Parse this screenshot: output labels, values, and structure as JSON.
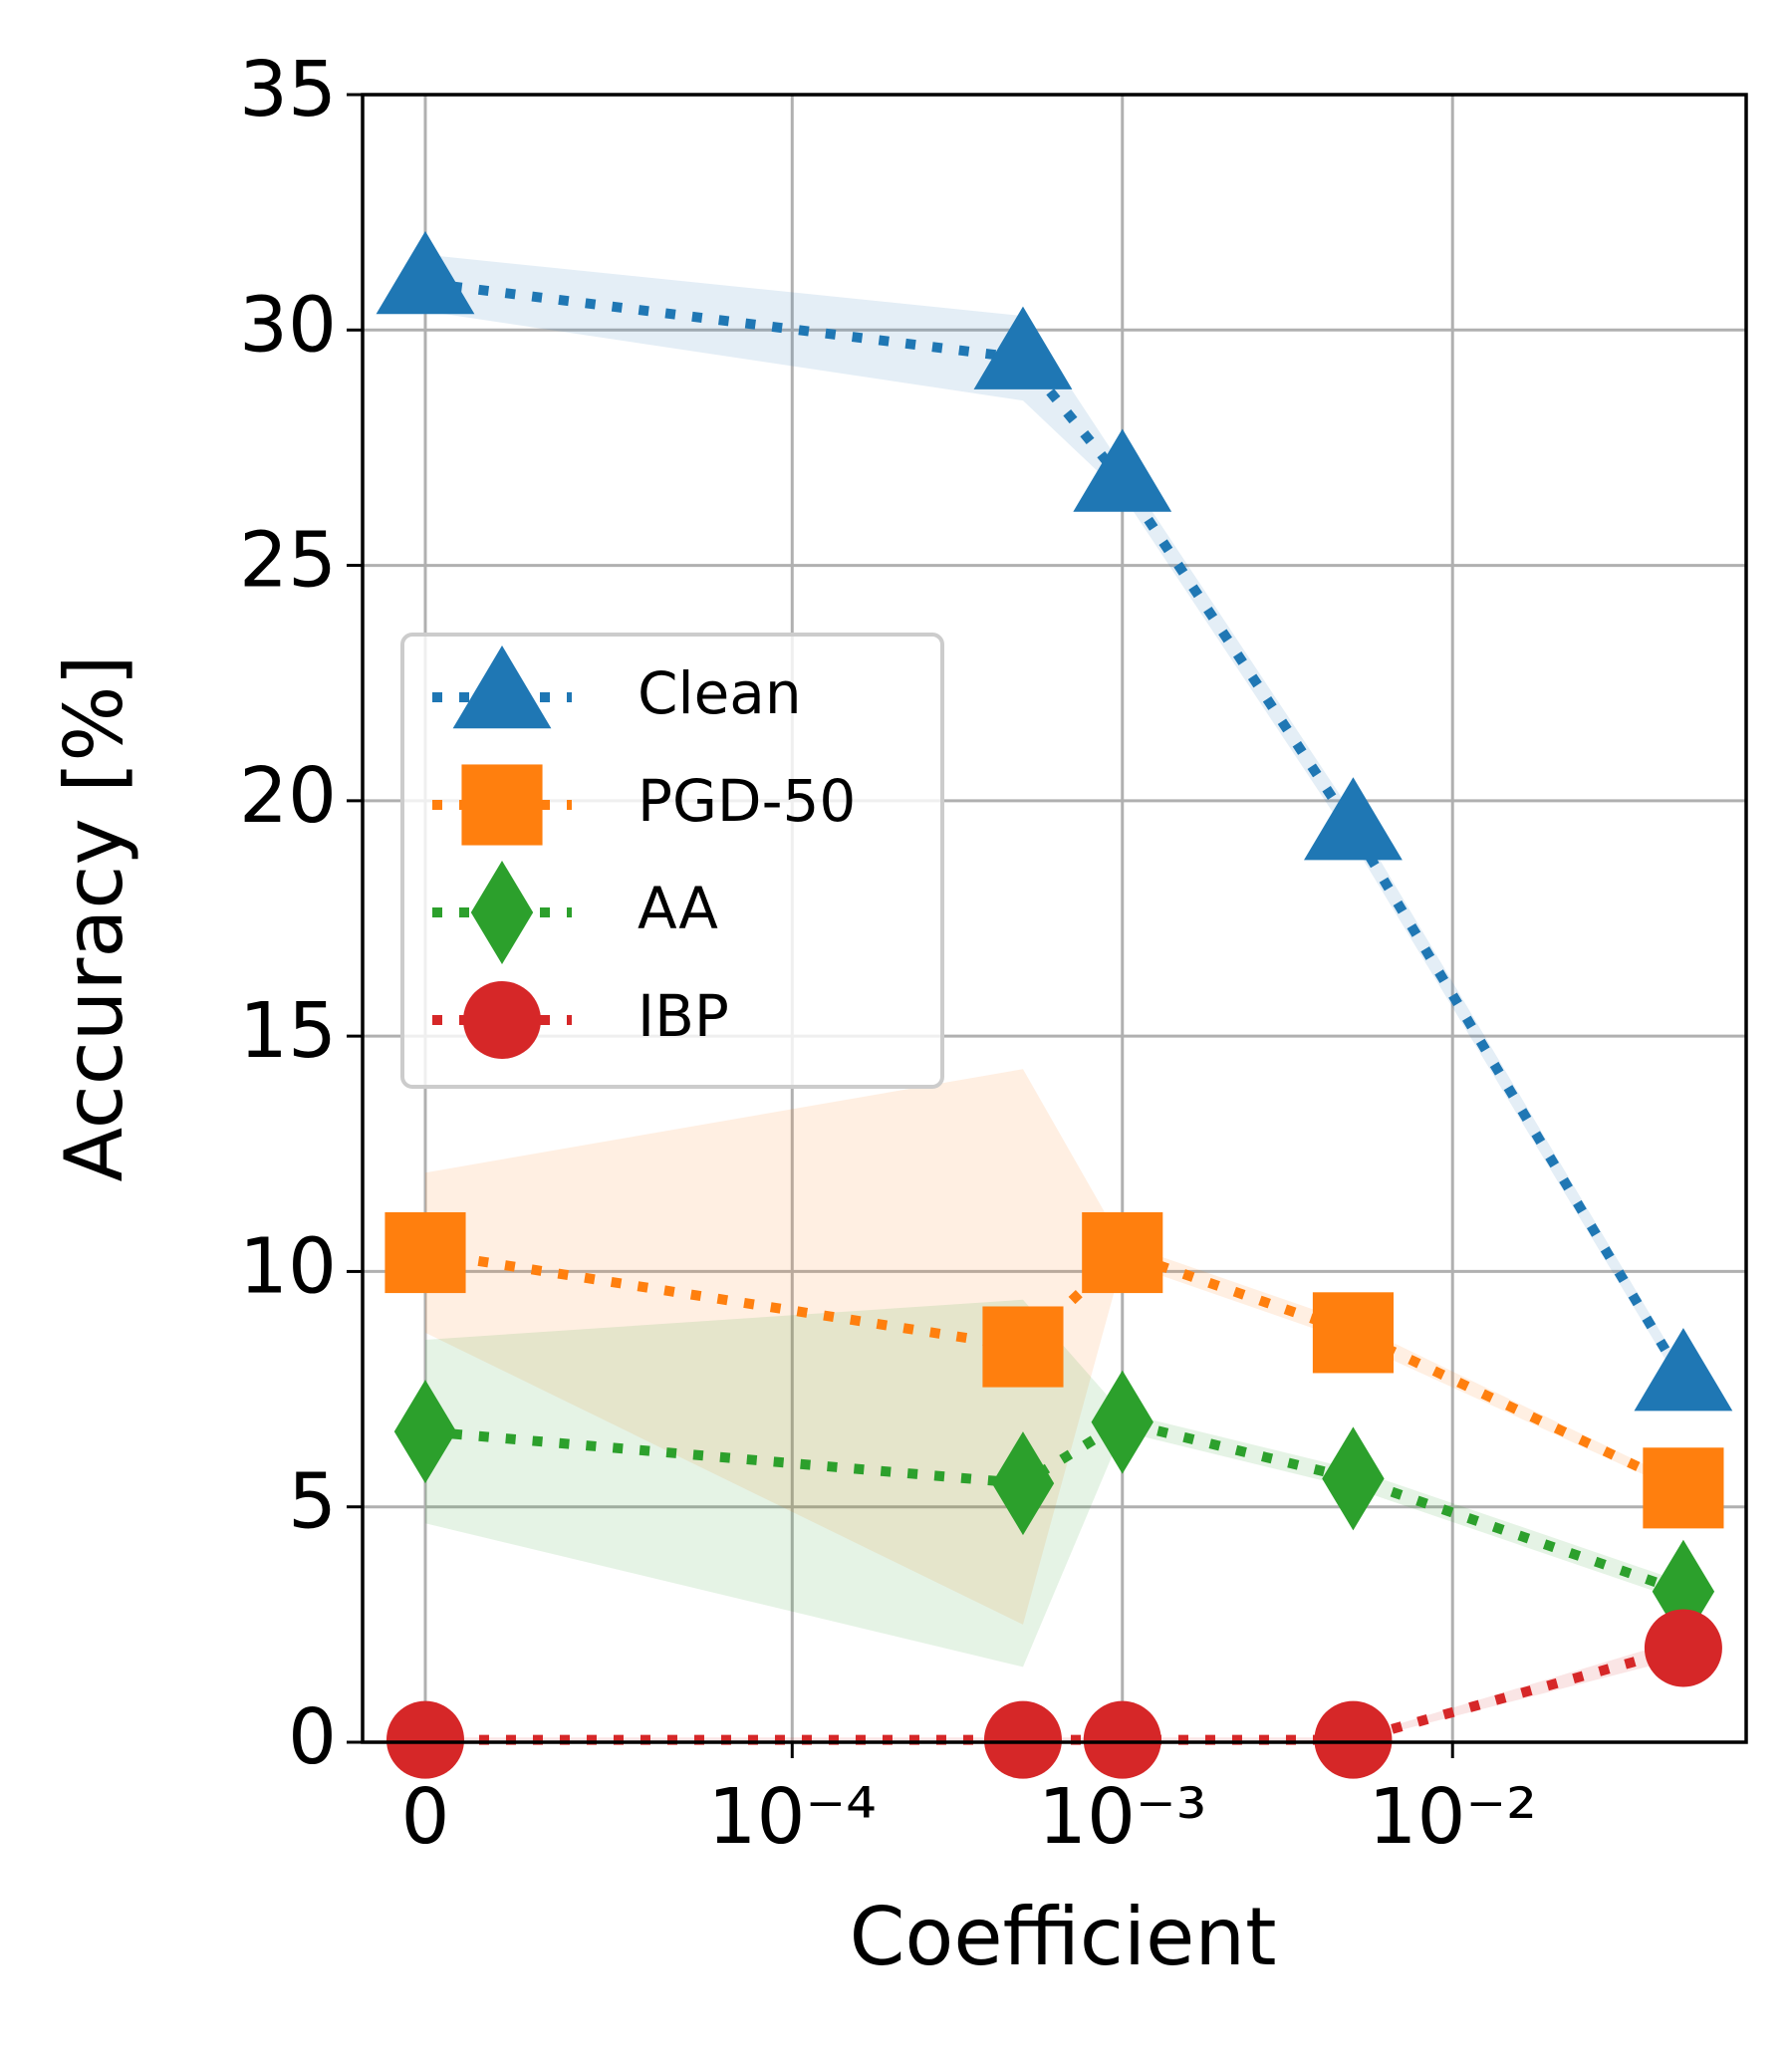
{
  "chart_data": {
    "type": "line",
    "xlabel": "Coefficient",
    "ylabel": "Accuracy [%]",
    "xscale": "symlog",
    "linthresh": 0.0001,
    "linscale": 1,
    "x": [
      0,
      0.0005,
      0.001,
      0.005,
      0.05
    ],
    "xlim": [
      -1.71e-05,
      0.0775
    ],
    "xticks": [
      0,
      {
        "value": 0.0001,
        "label": "10⁻⁴"
      },
      {
        "value": 0.001,
        "label": "10⁻³"
      },
      {
        "value": 0.01,
        "label": "10⁻²"
      }
    ],
    "ylim": [
      0,
      35
    ],
    "yticks": [
      0,
      5,
      10,
      15,
      20,
      25,
      30,
      35
    ],
    "grid": true,
    "legend": "center left",
    "series": [
      {
        "name": "Clean",
        "color": "#1f77b4",
        "marker": "triangle",
        "values": [
          31.0,
          29.4,
          26.8,
          19.4,
          7.7
        ],
        "errors": [
          0.6,
          0.9,
          0.3,
          0.3,
          0.2
        ]
      },
      {
        "name": "PGD-50",
        "color": "#ff7f0e",
        "marker": "square",
        "values": [
          10.4,
          8.4,
          10.4,
          8.7,
          5.4
        ],
        "errors": [
          1.7,
          5.9,
          0.2,
          0.2,
          0.1
        ]
      },
      {
        "name": "AA",
        "color": "#2ca02c",
        "marker": "diamond",
        "values": [
          6.6,
          5.5,
          6.8,
          5.6,
          3.2
        ],
        "errors": [
          1.95,
          3.9,
          0.2,
          0.2,
          0.2
        ]
      },
      {
        "name": "IBP",
        "color": "#d62728",
        "marker": "circle",
        "values": [
          0.05,
          0.05,
          0.05,
          0.05,
          2.0
        ],
        "errors": [
          0.05,
          0.05,
          0.05,
          0.05,
          0.2
        ]
      }
    ]
  }
}
